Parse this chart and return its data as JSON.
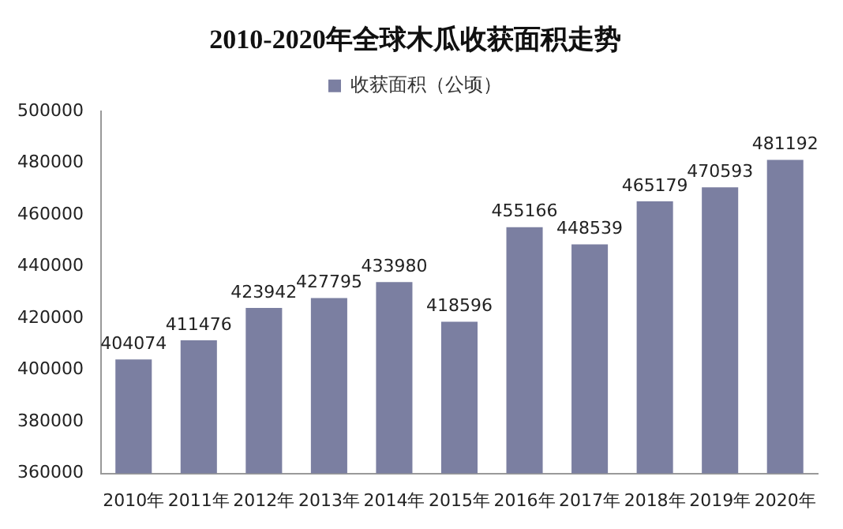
{
  "chart_data": {
    "type": "bar",
    "title": "2010-2020年全球木瓜收获面积走势",
    "categories": [
      "2010年",
      "2011年",
      "2012年",
      "2013年",
      "2014年",
      "2015年",
      "2016年",
      "2017年",
      "2018年",
      "2019年",
      "2020年"
    ],
    "series": [
      {
        "name": "收获面积（公顷）",
        "color": "#7b7fa1",
        "values": [
          404074,
          411476,
          423942,
          427795,
          433980,
          418596,
          455166,
          448539,
          465179,
          470593,
          481192
        ]
      }
    ],
    "ylim": [
      360000,
      500000
    ],
    "yticks": [
      360000,
      380000,
      400000,
      420000,
      440000,
      460000,
      480000,
      500000
    ],
    "grid": false,
    "legend": "top",
    "data_labels": true
  }
}
